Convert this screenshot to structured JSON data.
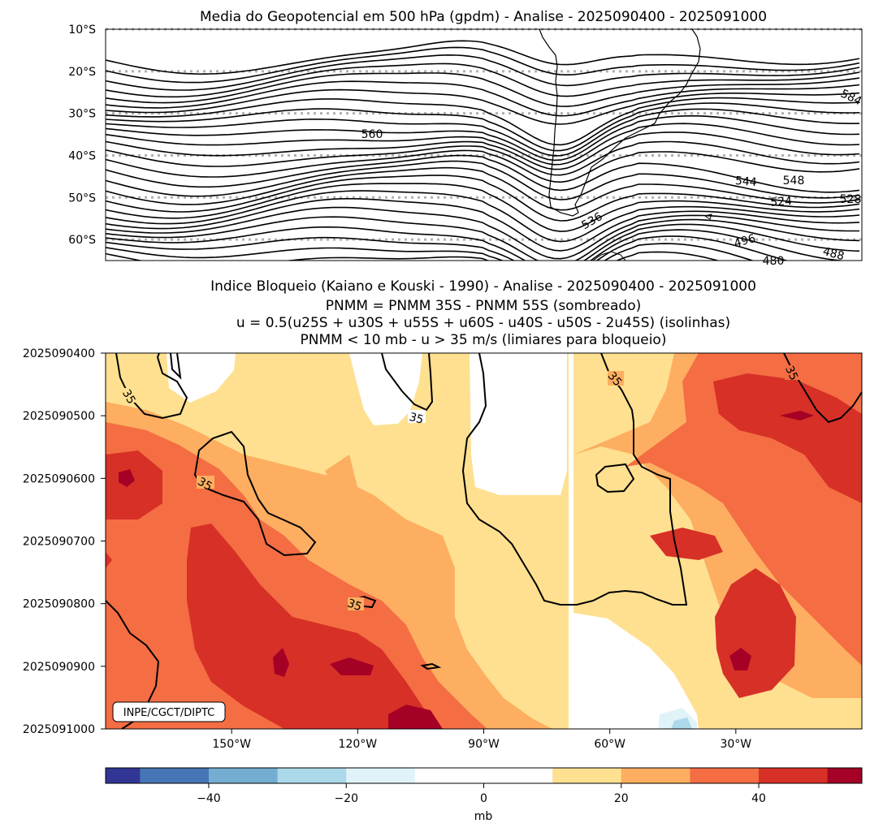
{
  "chart_data": [
    {
      "type": "contour",
      "title": "Media do Geopotencial em 500 hPa (gpdm) - Analise - 2025090400 - 2025091000",
      "y_tick_labels": [
        "10°S",
        "20°S",
        "30°S",
        "40°S",
        "50°S",
        "60°S"
      ],
      "ylim": [
        -65,
        -10
      ],
      "gridlines": "dotted, latitude every 10°",
      "contour_labels": [
        "584",
        "560",
        "544",
        "548",
        "524",
        "528",
        "536",
        "496",
        "488",
        "480"
      ],
      "contour_levels_gpdm": [
        480,
        488,
        496,
        504,
        512,
        520,
        528,
        536,
        544,
        552,
        560,
        568,
        576,
        584
      ]
    },
    {
      "type": "heatmap",
      "title_lines": [
        "Indice Bloqueio (Kaiano e Kouski - 1990) - Analise - 2025090400 - 2025091000",
        "PNMM = PNMM 35S - PNMM 55S (sombreado)",
        "u = 0.5(u25S + u30S + u55S + u60S - u40S - u50S - 2u45S) (isolinhas)",
        "PNMM < 10 mb - u > 35 m/s (limiares para bloqueio)"
      ],
      "y_tick_labels": [
        "2025090400",
        "2025090500",
        "2025090600",
        "2025090700",
        "2025090800",
        "2025090900",
        "2025091000"
      ],
      "x_tick_labels": [
        "150°W",
        "120°W",
        "90°W",
        "60°W",
        "30°W"
      ],
      "xlim": [
        -180,
        0
      ],
      "contour_label": "35",
      "contour_label_count": 6,
      "credit": "INPE/CGCT/DIPTC"
    },
    {
      "type": "colorbar",
      "levels": [
        -55,
        -50,
        -40,
        -30,
        -20,
        -10,
        0,
        10,
        20,
        30,
        40,
        50,
        55
      ],
      "colors": [
        "#313695",
        "#4575b4",
        "#74add1",
        "#abd9e9",
        "#e0f3f8",
        "#ffffff",
        "#ffffff",
        "#fee090",
        "#fdae61",
        "#f46d43",
        "#d73027",
        "#a50026"
      ],
      "tick_labels": [
        "−40",
        "−20",
        "0",
        "20",
        "40"
      ],
      "label": "mb"
    }
  ]
}
